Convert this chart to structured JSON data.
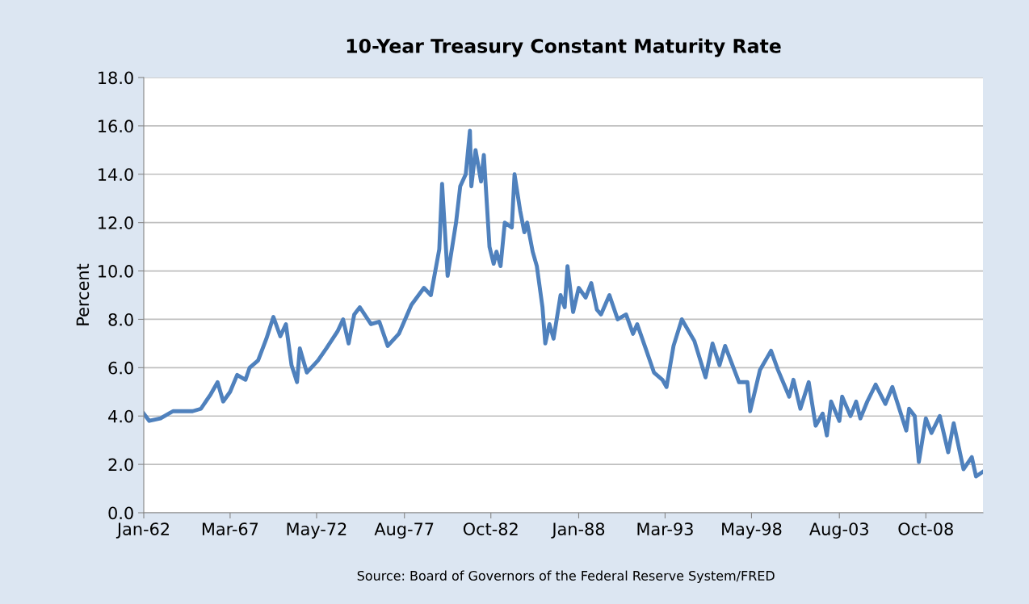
{
  "chart_data": {
    "type": "line",
    "title": "10-Year Treasury Constant Maturity Rate",
    "ylabel": "Percent",
    "annotations": [
      "Source: Board of Governors of the Federal Reserve System/FRED"
    ],
    "x": [
      "1962-01",
      "1962-05",
      "1963-01",
      "1963-10",
      "1964-12",
      "1965-06",
      "1966-01",
      "1966-06",
      "1966-10",
      "1967-03",
      "1967-08",
      "1968-02",
      "1968-05",
      "1968-11",
      "1969-05",
      "1969-10",
      "1970-03",
      "1970-07",
      "1970-11",
      "1971-03",
      "1971-05",
      "1971-10",
      "1972-06",
      "1972-12",
      "1973-08",
      "1973-12",
      "1974-04",
      "1974-08",
      "1974-12",
      "1975-08",
      "1976-02",
      "1976-08",
      "1977-04",
      "1978-01",
      "1978-10",
      "1979-03",
      "1979-09",
      "1979-11",
      "1980-03",
      "1980-09",
      "1980-12",
      "1981-04",
      "1981-07",
      "1981-08",
      "1981-11",
      "1982-03",
      "1982-05",
      "1982-09",
      "1982-12",
      "1983-02",
      "1983-05",
      "1983-08",
      "1984-01",
      "1984-03",
      "1984-07",
      "1984-10",
      "1984-12",
      "1985-04",
      "1985-07",
      "1985-11",
      "1986-01",
      "1986-04",
      "1986-07",
      "1986-12",
      "1987-03",
      "1987-05",
      "1987-09",
      "1988-01",
      "1988-06",
      "1988-10",
      "1989-02",
      "1989-05",
      "1989-11",
      "1990-05",
      "1990-11",
      "1991-04",
      "1991-07",
      "1992-01",
      "1992-07",
      "1993-01",
      "1993-04",
      "1993-09",
      "1994-03",
      "1994-12",
      "1995-08",
      "1996-01",
      "1996-06",
      "1996-10",
      "1997-08",
      "1998-02",
      "1998-04",
      "1998-11",
      "1999-07",
      "1999-12",
      "2000-08",
      "2000-11",
      "2001-04",
      "2001-10",
      "2002-03",
      "2002-08",
      "2002-11",
      "2003-02",
      "2003-08",
      "2003-10",
      "2004-04",
      "2004-08",
      "2004-11",
      "2005-04",
      "2005-10",
      "2006-05",
      "2006-10",
      "2007-08",
      "2007-10",
      "2008-02",
      "2008-05",
      "2008-10",
      "2009-02",
      "2009-08",
      "2010-02",
      "2010-06",
      "2011-01",
      "2011-07",
      "2011-10",
      "2012-03"
    ],
    "series": [
      {
        "color": "#4f81bd",
        "values": [
          4.1,
          3.8,
          3.9,
          4.2,
          4.2,
          4.3,
          4.9,
          5.4,
          4.6,
          5.0,
          5.7,
          5.5,
          6.0,
          6.3,
          7.2,
          8.1,
          7.3,
          7.8,
          6.1,
          5.4,
          6.8,
          5.8,
          6.3,
          6.8,
          7.5,
          8.0,
          7.0,
          8.2,
          8.5,
          7.8,
          7.9,
          6.9,
          7.4,
          8.6,
          9.3,
          9.0,
          10.9,
          13.6,
          9.8,
          12.0,
          13.5,
          14.0,
          15.8,
          13.5,
          15.0,
          13.7,
          14.8,
          11.0,
          10.3,
          10.8,
          10.2,
          12.0,
          11.8,
          14.0,
          12.5,
          11.6,
          12.0,
          10.8,
          10.2,
          8.5,
          7.0,
          7.8,
          7.2,
          9.0,
          8.5,
          10.2,
          8.3,
          9.3,
          8.9,
          9.5,
          8.4,
          8.2,
          9.0,
          8.0,
          8.2,
          7.4,
          7.8,
          6.8,
          5.8,
          5.5,
          5.2,
          6.9,
          8.0,
          7.1,
          5.6,
          7.0,
          6.1,
          6.9,
          5.4,
          5.4,
          4.2,
          5.9,
          6.7,
          5.9,
          4.8,
          5.5,
          4.3,
          5.4,
          3.6,
          4.1,
          3.2,
          4.6,
          3.8,
          4.8,
          4.0,
          4.6,
          3.9,
          4.6,
          5.3,
          4.5,
          5.2,
          3.4,
          4.3,
          4.0,
          2.1,
          3.9,
          3.3,
          4.0,
          2.5,
          3.7,
          1.8,
          2.3,
          1.5,
          1.7
        ]
      }
    ],
    "xlim": [
      "1962-01",
      "2012-03"
    ],
    "xticks": [
      {
        "value": "1962-01",
        "label": "Jan-62"
      },
      {
        "value": "1967-03",
        "label": "Mar-67"
      },
      {
        "value": "1972-05",
        "label": "May-72"
      },
      {
        "value": "1977-08",
        "label": "Aug-77"
      },
      {
        "value": "1982-10",
        "label": "Oct-82"
      },
      {
        "value": "1988-01",
        "label": "Jan-88"
      },
      {
        "value": "1993-03",
        "label": "Mar-93"
      },
      {
        "value": "1998-05",
        "label": "May-98"
      },
      {
        "value": "2003-08",
        "label": "Aug-03"
      },
      {
        "value": "2008-10",
        "label": "Oct-08"
      }
    ],
    "ylim": [
      0,
      18
    ],
    "yticks": [
      {
        "value": 0,
        "label": "0.0"
      },
      {
        "value": 2,
        "label": "2.0"
      },
      {
        "value": 4,
        "label": "4.0"
      },
      {
        "value": 6,
        "label": "6.0"
      },
      {
        "value": 8,
        "label": "8.0"
      },
      {
        "value": 10,
        "label": "10.0"
      },
      {
        "value": 12,
        "label": "12.0"
      },
      {
        "value": 14,
        "label": "14.0"
      },
      {
        "value": 16,
        "label": "16.0"
      },
      {
        "value": 18,
        "label": "18.0"
      }
    ],
    "grid": "y",
    "marker": "none",
    "line_style": "solid"
  }
}
